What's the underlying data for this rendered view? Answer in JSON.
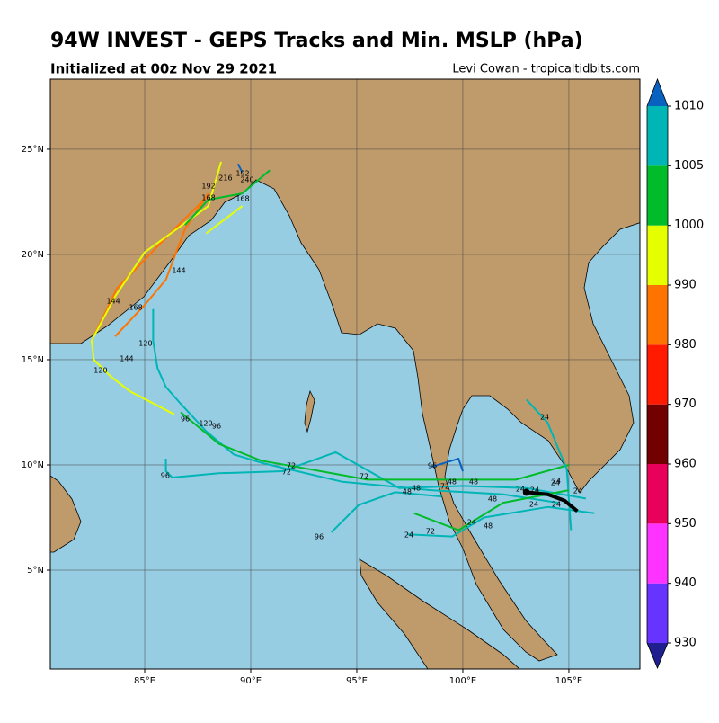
{
  "title": "94W INVEST - GEPS Tracks and Min. MSLP (hPa)",
  "subtitle": "Initialized at 00z Nov 29 2021",
  "credit": "Levi Cowan - tropicaltidbits.com",
  "map": {
    "lonlim": [
      80.55,
      108.35
    ],
    "latlim": [
      0.3,
      28.33
    ],
    "lonticks": [
      {
        "value": 85,
        "label": "85°E"
      },
      {
        "value": 90,
        "label": "90°E"
      },
      {
        "value": 95,
        "label": "95°E"
      },
      {
        "value": 100,
        "label": "100°E"
      },
      {
        "value": 105,
        "label": "105°E"
      }
    ],
    "latticks": [
      {
        "value": 5,
        "label": "5°N"
      },
      {
        "value": 10,
        "label": "10°N"
      },
      {
        "value": 15,
        "label": "15°N"
      },
      {
        "value": 20,
        "label": "20°N"
      },
      {
        "value": 25,
        "label": "25°N"
      }
    ],
    "grid": true,
    "tracks": [
      {
        "color": "#00b5b5",
        "lon": [
          104.5,
          101.9,
          98.5,
          96.4,
          94.3,
          90.5,
          89.2,
          87.9,
          86.7,
          86.0,
          85.6,
          85.4,
          85.4
        ],
        "lat": [
          8.2,
          8.6,
          8.8,
          9.0,
          9.2,
          10.1,
          10.5,
          11.6,
          12.9,
          13.7,
          14.6,
          15.9,
          17.4
        ]
      },
      {
        "color": "#00b5b5",
        "lon": [
          105.8,
          103.0,
          100.0,
          97.0,
          94.0,
          91.5,
          88.5,
          86.3,
          86.0,
          86.0
        ],
        "lat": [
          8.4,
          8.9,
          9.0,
          8.9,
          10.6,
          9.7,
          9.6,
          9.4,
          9.7,
          10.3
        ]
      },
      {
        "color": "#00bb2a",
        "lon": [
          105.0,
          102.5,
          99.0,
          95.5,
          92.2,
          90.5,
          88.5,
          86.7
        ],
        "lat": [
          10.0,
          9.3,
          9.3,
          9.3,
          9.9,
          10.2,
          11.0,
          12.5
        ]
      },
      {
        "color": "#ff7400",
        "lon": [
          88.0,
          86.9,
          86.0,
          85.0,
          83.6
        ],
        "lat": [
          22.9,
          21.2,
          18.8,
          17.6,
          16.1
        ]
      },
      {
        "color": "#ff7400",
        "lon": [
          87.9,
          86.2,
          83.7,
          82.5
        ],
        "lat": [
          22.7,
          21.0,
          18.4,
          15.9
        ]
      },
      {
        "color": "#e6ff00",
        "lon": [
          88.6,
          88.0,
          85.0,
          83.6,
          82.5,
          82.6,
          83.4,
          84.3,
          86.4
        ],
        "lat": [
          24.4,
          22.3,
          20.1,
          18.0,
          15.9,
          15.0,
          14.2,
          13.5,
          12.4
        ]
      },
      {
        "color": "#00bb2a",
        "lon": [
          86.9,
          88.0,
          89.6,
          90.9
        ],
        "lat": [
          21.4,
          22.6,
          22.9,
          24.0
        ]
      },
      {
        "color": "#e6ff00",
        "lon": [
          89.6,
          87.9
        ],
        "lat": [
          22.3,
          21.0
        ]
      },
      {
        "color": "#00b5b5",
        "lon": [
          103.0,
          104.0,
          104.9,
          105.1
        ],
        "lat": [
          13.1,
          12.0,
          9.8,
          6.9
        ]
      },
      {
        "color": "#00b5b5",
        "lon": [
          99.0,
          96.8,
          95.1,
          93.8
        ],
        "lat": [
          8.5,
          8.7,
          8.1,
          6.8
        ]
      },
      {
        "color": "#00b5b5",
        "lon": [
          106.2,
          104.0,
          101.0,
          99.5,
          97.4
        ],
        "lat": [
          7.7,
          8.0,
          7.5,
          6.6,
          6.7
        ]
      },
      {
        "color": "#00bb2a",
        "lon": [
          105.0,
          101.9,
          99.8,
          97.7
        ],
        "lat": [
          8.8,
          8.2,
          6.9,
          7.7
        ]
      },
      {
        "color": "#0a62c0",
        "lon": [
          98.5,
          99.8,
          100.0
        ],
        "lat": [
          9.9,
          10.3,
          9.7
        ]
      },
      {
        "color": "#0a62c0",
        "lon": [
          89.4,
          89.6
        ],
        "lat": [
          24.3,
          23.9
        ]
      },
      {
        "color": "#000000",
        "lon": [
          103.0,
          104.0,
          104.8,
          105.4
        ],
        "lat": [
          8.7,
          8.6,
          8.3,
          7.8
        ]
      }
    ],
    "labels": [
      {
        "text": "216",
        "lon": 88.81,
        "lat": 23.63
      },
      {
        "text": "192",
        "lon": 89.62,
        "lat": 23.85
      },
      {
        "text": "240",
        "lon": 89.83,
        "lat": 23.55
      },
      {
        "text": "192",
        "lon": 88.01,
        "lat": 23.25
      },
      {
        "text": "168",
        "lon": 88.01,
        "lat": 22.69
      },
      {
        "text": "168",
        "lon": 89.62,
        "lat": 22.65
      },
      {
        "text": "144",
        "lon": 86.61,
        "lat": 19.23
      },
      {
        "text": "144",
        "lon": 83.52,
        "lat": 17.78
      },
      {
        "text": "168",
        "lon": 84.58,
        "lat": 17.48
      },
      {
        "text": "120",
        "lon": 85.04,
        "lat": 15.77
      },
      {
        "text": "144",
        "lon": 84.15,
        "lat": 15.04
      },
      {
        "text": "120",
        "lon": 82.92,
        "lat": 14.49
      },
      {
        "text": "96",
        "lon": 86.91,
        "lat": 12.18
      },
      {
        "text": "120",
        "lon": 87.88,
        "lat": 11.97
      },
      {
        "text": "96",
        "lon": 88.39,
        "lat": 11.84
      },
      {
        "text": "72",
        "lon": 91.91,
        "lat": 9.96
      },
      {
        "text": "72",
        "lon": 91.69,
        "lat": 9.66
      },
      {
        "text": "96",
        "lon": 85.97,
        "lat": 9.49
      },
      {
        "text": "72",
        "lon": 95.34,
        "lat": 9.44
      },
      {
        "text": "96",
        "lon": 98.56,
        "lat": 9.96
      },
      {
        "text": "48",
        "lon": 100.51,
        "lat": 9.19
      },
      {
        "text": "48",
        "lon": 99.49,
        "lat": 9.19
      },
      {
        "text": "72",
        "lon": 99.15,
        "lat": 8.97
      },
      {
        "text": "48",
        "lon": 97.8,
        "lat": 8.89
      },
      {
        "text": "48",
        "lon": 97.37,
        "lat": 8.72
      },
      {
        "text": "24",
        "lon": 104.41,
        "lat": 9.23
      },
      {
        "text": "24",
        "lon": 102.71,
        "lat": 8.85
      },
      {
        "text": "24",
        "lon": 103.39,
        "lat": 8.8
      },
      {
        "text": "24",
        "lon": 104.36,
        "lat": 9.15
      },
      {
        "text": "24",
        "lon": 105.42,
        "lat": 8.76
      },
      {
        "text": "48",
        "lon": 101.4,
        "lat": 8.38
      },
      {
        "text": "24",
        "lon": 103.35,
        "lat": 8.12
      },
      {
        "text": "24",
        "lon": 104.41,
        "lat": 8.12
      },
      {
        "text": "24",
        "lon": 100.42,
        "lat": 7.26
      },
      {
        "text": "48",
        "lon": 101.19,
        "lat": 7.09
      },
      {
        "text": "24",
        "lon": 97.46,
        "lat": 6.67
      },
      {
        "text": "72",
        "lon": 98.47,
        "lat": 6.84
      },
      {
        "text": "96",
        "lon": 93.22,
        "lat": 6.58
      },
      {
        "text": "24",
        "lon": 103.86,
        "lat": 12.26
      }
    ]
  },
  "colorbar": {
    "ticks": [
      930,
      940,
      950,
      960,
      970,
      980,
      990,
      1000,
      1005,
      1010
    ],
    "colors": [
      "#6633ff",
      "#ff33ff",
      "#e8005a",
      "#730000",
      "#ff1a00",
      "#ff7400",
      "#e6ff00",
      "#00bb2a",
      "#00b5b5"
    ],
    "under": "#1f1f8f",
    "over": "#0a62c0"
  }
}
